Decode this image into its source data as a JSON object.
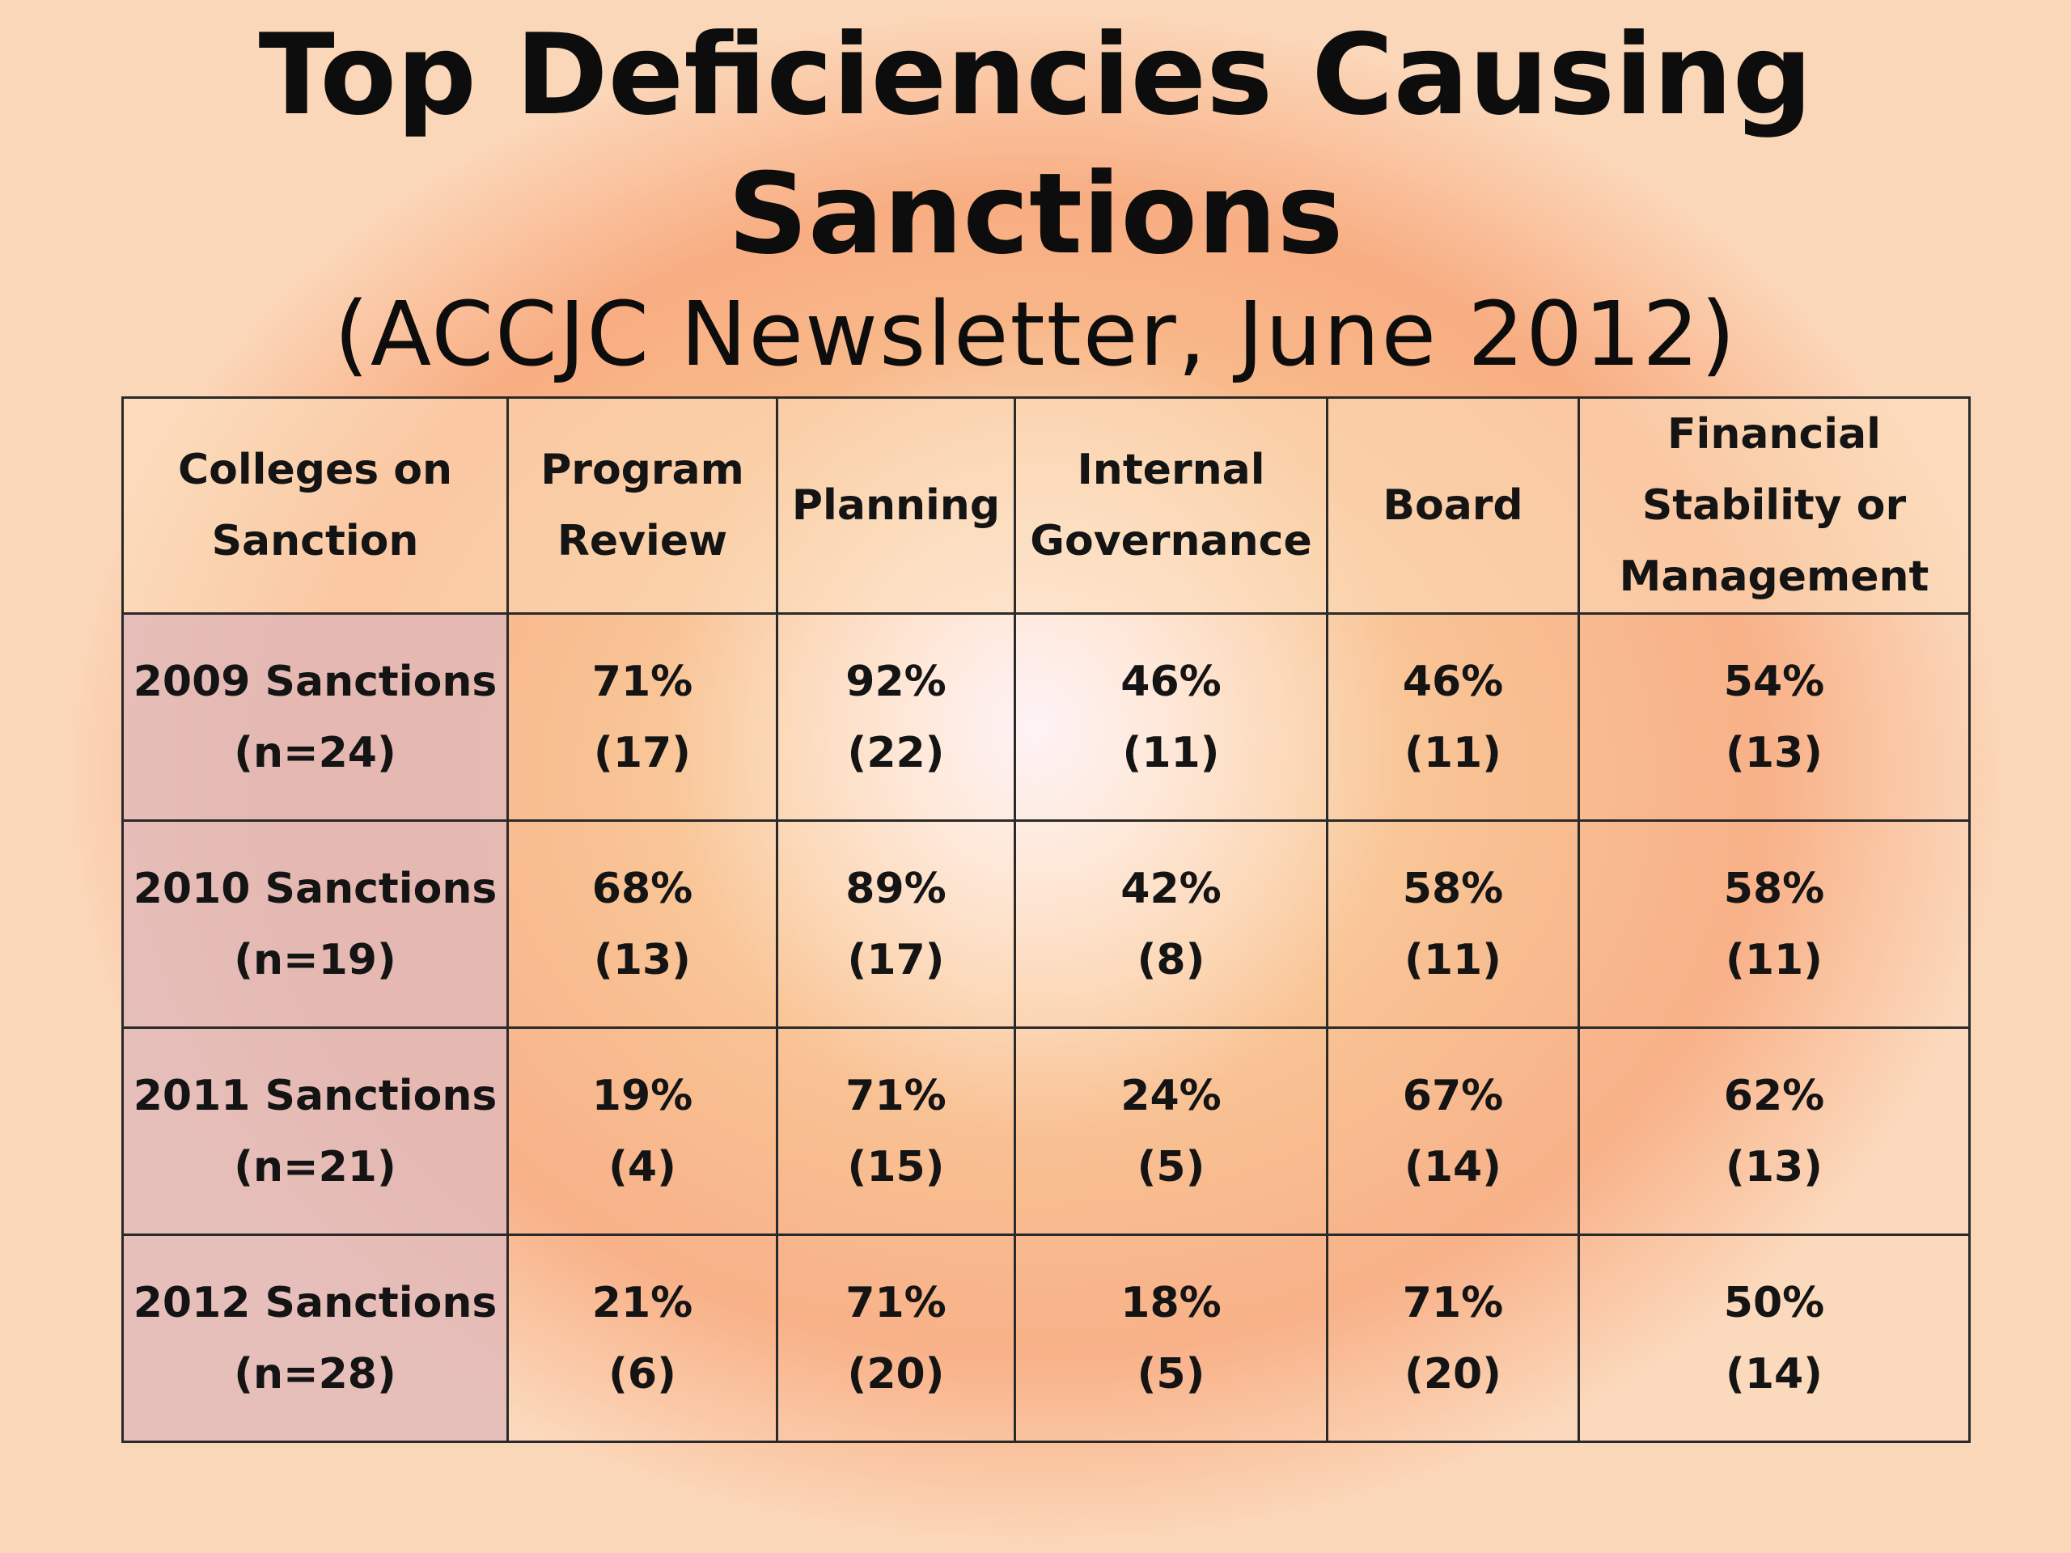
{
  "title_line1": "Top Deficiencies Causing",
  "title_line2": "Sanctions",
  "subtitle": "(ACCJC Newsletter, June 2012)",
  "chart_data": {
    "type": "table",
    "title": "Top Deficiencies Causing Sanctions",
    "subtitle": "(ACCJC Newsletter, June 2012)",
    "columns": [
      {
        "lines": [
          "Colleges on",
          "Sanction"
        ]
      },
      {
        "lines": [
          "Program",
          "Review"
        ]
      },
      {
        "lines": [
          "Planning"
        ]
      },
      {
        "lines": [
          "Internal",
          "Governance"
        ]
      },
      {
        "lines": [
          "Board"
        ]
      },
      {
        "lines": [
          "Financial",
          "Stability or",
          "Management"
        ]
      }
    ],
    "rows": [
      {
        "label": "2009 Sanctions",
        "n": "(n=24)",
        "cells": [
          {
            "pct": "71%",
            "count": "(17)"
          },
          {
            "pct": "92%",
            "count": "(22)"
          },
          {
            "pct": "46%",
            "count": "(11)"
          },
          {
            "pct": "46%",
            "count": "(11)"
          },
          {
            "pct": "54%",
            "count": "(13)"
          }
        ]
      },
      {
        "label": "2010 Sanctions",
        "n": "(n=19)",
        "cells": [
          {
            "pct": "68%",
            "count": "(13)"
          },
          {
            "pct": "89%",
            "count": "(17)"
          },
          {
            "pct": "42%",
            "count": "(8)"
          },
          {
            "pct": "58%",
            "count": "(11)"
          },
          {
            "pct": "58%",
            "count": "(11)"
          }
        ]
      },
      {
        "label": "2011 Sanctions",
        "n": "(n=21)",
        "cells": [
          {
            "pct": "19%",
            "count": "(4)"
          },
          {
            "pct": "71%",
            "count": "(15)"
          },
          {
            "pct": "24%",
            "count": "(5)"
          },
          {
            "pct": "67%",
            "count": "(14)"
          },
          {
            "pct": "62%",
            "count": "(13)"
          }
        ]
      },
      {
        "label": "2012 Sanctions",
        "n": "(n=28)",
        "cells": [
          {
            "pct": "21%",
            "count": "(6)"
          },
          {
            "pct": "71%",
            "count": "(20)"
          },
          {
            "pct": "18%",
            "count": "(5)"
          },
          {
            "pct": "71%",
            "count": "(20)"
          },
          {
            "pct": "50%",
            "count": "(14)"
          }
        ]
      }
    ]
  }
}
